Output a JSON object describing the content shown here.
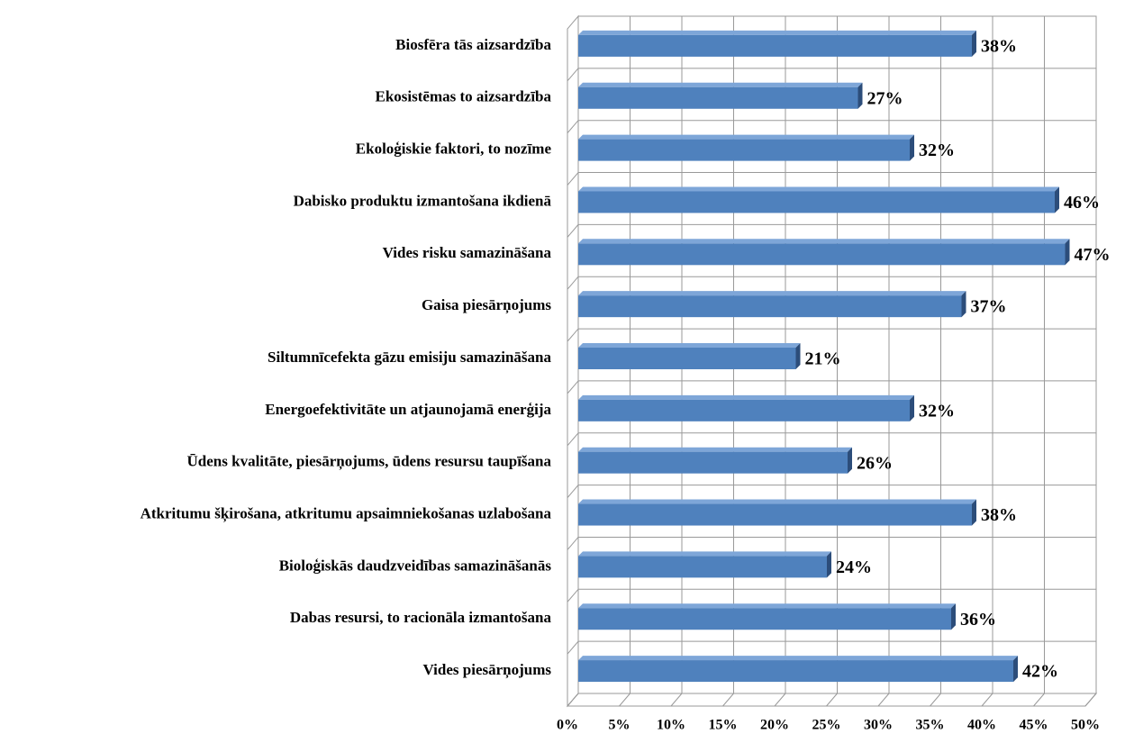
{
  "chart_data": {
    "type": "bar3d-horizontal",
    "categories": [
      "Biosfēra tās aizsardzība",
      "Ekosistēmas to aizsardzība",
      "Ekoloģiskie faktori, to nozīme",
      "Dabisko produktu izmantošana ikdienā",
      "Vides risku samazināšana",
      "Gaisa piesārņojums",
      "Siltumnīcefekta gāzu emisiju samazināšana",
      "Energoefektivitāte un atjaunojamā enerģija",
      "Ūdens kvalitāte, piesārņojums, ūdens resursu taupīšana",
      "Atkritumu šķirošana, atkritumu apsaimniekošanas uzlabošana",
      "Bioloģiskās daudzveidības samazināšanās",
      "Dabas resursi, to racionāla izmantošana",
      "Vides piesārņojums"
    ],
    "values": [
      38,
      27,
      32,
      46,
      47,
      37,
      21,
      32,
      26,
      38,
      24,
      36,
      42
    ],
    "value_labels": [
      "38%",
      "27%",
      "32%",
      "46%",
      "47%",
      "37%",
      "21%",
      "32%",
      "26%",
      "38%",
      "24%",
      "36%",
      "42%"
    ],
    "color": "#4f81bd",
    "xlim": [
      0,
      50
    ],
    "xticks": [
      {
        "value": 0,
        "label": "0%"
      },
      {
        "value": 5,
        "label": "5%"
      },
      {
        "value": 10,
        "label": "10%"
      },
      {
        "value": 15,
        "label": "15%"
      },
      {
        "value": 20,
        "label": "20%"
      },
      {
        "value": 25,
        "label": "25%"
      },
      {
        "value": 30,
        "label": "30%"
      },
      {
        "value": 35,
        "label": "35%"
      },
      {
        "value": 40,
        "label": "40%"
      },
      {
        "value": 45,
        "label": "45%"
      },
      {
        "value": 50,
        "label": "50%"
      }
    ],
    "grid": true
  }
}
